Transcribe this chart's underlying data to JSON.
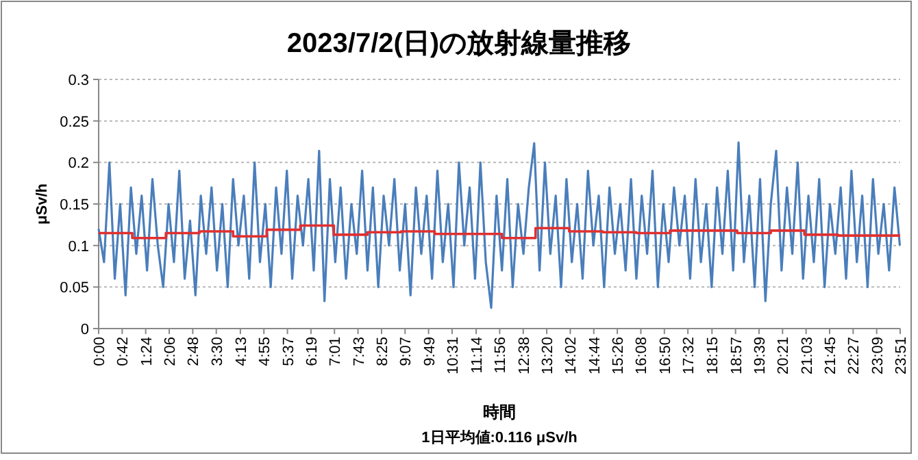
{
  "chart_data": {
    "type": "line",
    "title": "2023/7/2(日)の放射線量推移",
    "xlabel": "時間",
    "ylabel": "μSv/h",
    "annotations": [
      "1日平均値:0.116 μSv/h"
    ],
    "xlim": [
      0,
      23.85
    ],
    "xticks": [
      {
        "value": 0,
        "label": "0:00"
      },
      {
        "value": 0.7,
        "label": "0:42"
      },
      {
        "value": 1.4,
        "label": "1:24"
      },
      {
        "value": 2.1,
        "label": "2:06"
      },
      {
        "value": 2.8,
        "label": "2:48"
      },
      {
        "value": 3.5,
        "label": "3:30"
      },
      {
        "value": 4.217,
        "label": "4:13"
      },
      {
        "value": 4.917,
        "label": "4:55"
      },
      {
        "value": 5.617,
        "label": "5:37"
      },
      {
        "value": 6.317,
        "label": "6:19"
      },
      {
        "value": 7.017,
        "label": "7:01"
      },
      {
        "value": 7.717,
        "label": "7:43"
      },
      {
        "value": 8.417,
        "label": "8:25"
      },
      {
        "value": 9.117,
        "label": "9:07"
      },
      {
        "value": 9.817,
        "label": "9:49"
      },
      {
        "value": 10.517,
        "label": "10:31"
      },
      {
        "value": 11.233,
        "label": "11:14"
      },
      {
        "value": 11.933,
        "label": "11:56"
      },
      {
        "value": 12.633,
        "label": "12:38"
      },
      {
        "value": 13.333,
        "label": "13:20"
      },
      {
        "value": 14.033,
        "label": "14:02"
      },
      {
        "value": 14.733,
        "label": "14:44"
      },
      {
        "value": 15.433,
        "label": "15:26"
      },
      {
        "value": 16.133,
        "label": "16:08"
      },
      {
        "value": 16.833,
        "label": "16:50"
      },
      {
        "value": 17.533,
        "label": "17:32"
      },
      {
        "value": 18.25,
        "label": "18:15"
      },
      {
        "value": 18.95,
        "label": "18:57"
      },
      {
        "value": 19.65,
        "label": "19:39"
      },
      {
        "value": 20.35,
        "label": "20:21"
      },
      {
        "value": 21.05,
        "label": "21:03"
      },
      {
        "value": 21.75,
        "label": "21:45"
      },
      {
        "value": 22.45,
        "label": "22:27"
      },
      {
        "value": 23.15,
        "label": "23:09"
      },
      {
        "value": 23.85,
        "label": "23:51"
      }
    ],
    "ylim": [
      0,
      0.3
    ],
    "yticks": [
      0,
      0.05,
      0.1,
      0.15,
      0.2,
      0.25,
      0.3
    ],
    "grid": "y",
    "marker": "none",
    "line_style": "solid",
    "series": [
      {
        "color": "#4a7ebb",
        "x": [
          0,
          0.16,
          0.32,
          0.48,
          0.64,
          0.8,
          0.96,
          1.12,
          1.28,
          1.44,
          1.6,
          1.76,
          1.92,
          2.08,
          2.24,
          2.4,
          2.56,
          2.72,
          2.88,
          3.04,
          3.2,
          3.36,
          3.52,
          3.68,
          3.84,
          4,
          4.16,
          4.32,
          4.48,
          4.64,
          4.8,
          4.96,
          5.12,
          5.28,
          5.44,
          5.6,
          5.76,
          5.92,
          6.08,
          6.24,
          6.4,
          6.56,
          6.72,
          6.88,
          7.04,
          7.2,
          7.36,
          7.52,
          7.68,
          7.84,
          8,
          8.16,
          8.32,
          8.48,
          8.64,
          8.8,
          8.96,
          9.12,
          9.28,
          9.44,
          9.6,
          9.76,
          9.92,
          10.08,
          10.24,
          10.4,
          10.56,
          10.72,
          10.88,
          11.04,
          11.2,
          11.36,
          11.52,
          11.68,
          11.84,
          12,
          12.16,
          12.32,
          12.48,
          12.64,
          12.8,
          12.96,
          13.12,
          13.28,
          13.44,
          13.6,
          13.76,
          13.92,
          14.08,
          14.24,
          14.4,
          14.56,
          14.72,
          14.88,
          15.04,
          15.2,
          15.36,
          15.52,
          15.68,
          15.84,
          16,
          16.16,
          16.32,
          16.48,
          16.64,
          16.8,
          16.96,
          17.12,
          17.28,
          17.44,
          17.6,
          17.76,
          17.92,
          18.08,
          18.24,
          18.4,
          18.56,
          18.72,
          18.88,
          19.04,
          19.2,
          19.36,
          19.52,
          19.68,
          19.84,
          20,
          20.16,
          20.32,
          20.48,
          20.64,
          20.8,
          20.96,
          21.12,
          21.28,
          21.44,
          21.6,
          21.76,
          21.92,
          22.08,
          22.24,
          22.4,
          22.56,
          22.72,
          22.88,
          23.04,
          23.2,
          23.36,
          23.52,
          23.68,
          23.84
        ],
        "values": [
          0.12,
          0.08,
          0.2,
          0.06,
          0.15,
          0.04,
          0.17,
          0.09,
          0.16,
          0.07,
          0.18,
          0.1,
          0.05,
          0.15,
          0.08,
          0.19,
          0.06,
          0.13,
          0.04,
          0.16,
          0.09,
          0.17,
          0.07,
          0.15,
          0.05,
          0.18,
          0.1,
          0.16,
          0.06,
          0.2,
          0.08,
          0.15,
          0.05,
          0.17,
          0.09,
          0.19,
          0.06,
          0.16,
          0.1,
          0.18,
          0.07,
          0.214,
          0.033,
          0.18,
          0.08,
          0.17,
          0.06,
          0.15,
          0.09,
          0.19,
          0.07,
          0.17,
          0.05,
          0.16,
          0.1,
          0.18,
          0.07,
          0.15,
          0.04,
          0.17,
          0.09,
          0.16,
          0.06,
          0.19,
          0.08,
          0.15,
          0.05,
          0.2,
          0.1,
          0.17,
          0.06,
          0.2,
          0.08,
          0.025,
          0.16,
          0.07,
          0.18,
          0.05,
          0.15,
          0.09,
          0.17,
          0.223,
          0.07,
          0.2,
          0.09,
          0.16,
          0.05,
          0.18,
          0.08,
          0.15,
          0.06,
          0.19,
          0.1,
          0.16,
          0.05,
          0.17,
          0.09,
          0.15,
          0.07,
          0.18,
          0.06,
          0.16,
          0.09,
          0.19,
          0.05,
          0.15,
          0.08,
          0.17,
          0.1,
          0.16,
          0.06,
          0.18,
          0.08,
          0.15,
          0.05,
          0.17,
          0.09,
          0.19,
          0.07,
          0.224,
          0.08,
          0.16,
          0.05,
          0.18,
          0.033,
          0.15,
          0.214,
          0.07,
          0.17,
          0.09,
          0.2,
          0.06,
          0.16,
          0.08,
          0.18,
          0.05,
          0.15,
          0.09,
          0.17,
          0.06,
          0.19,
          0.08,
          0.16,
          0.05,
          0.18,
          0.09,
          0.15,
          0.07,
          0.17,
          0.1
        ]
      },
      {
        "type": "step",
        "color": "#e03030",
        "x": [
          0,
          1,
          2,
          3,
          4,
          5,
          6,
          7,
          8,
          9,
          10,
          11,
          12,
          13,
          14,
          15,
          16,
          17,
          18,
          19,
          20,
          21,
          22,
          23,
          23.85
        ],
        "values": [
          0.115,
          0.109,
          0.115,
          0.117,
          0.111,
          0.119,
          0.124,
          0.113,
          0.116,
          0.117,
          0.114,
          0.114,
          0.109,
          0.121,
          0.117,
          0.116,
          0.115,
          0.118,
          0.118,
          0.115,
          0.118,
          0.113,
          0.112,
          0.112,
          0.112
        ]
      }
    ]
  }
}
